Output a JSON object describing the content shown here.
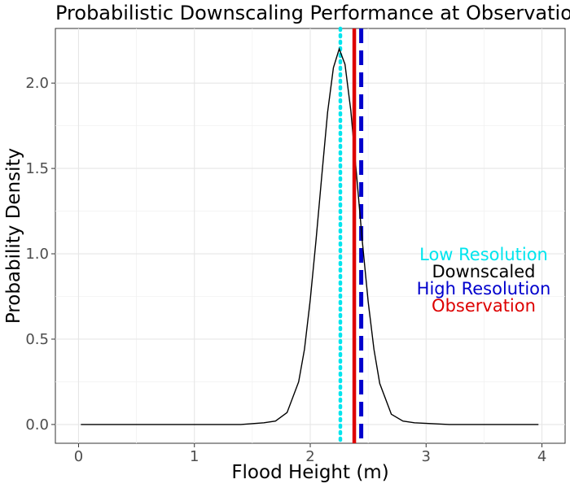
{
  "chart_data": {
    "type": "line",
    "title": "Probabilistic Downscaling Performance at Observation",
    "xlabel": "Flood Height (m)",
    "ylabel": "Probability Density",
    "xlim": [
      -0.2,
      4.2
    ],
    "ylim": [
      -0.11,
      2.32
    ],
    "x_ticks": [
      0,
      1,
      2,
      3,
      4
    ],
    "y_ticks": [
      0.0,
      0.5,
      1.0,
      1.5,
      2.0
    ],
    "x_tick_labels": [
      "0",
      "1",
      "2",
      "3",
      "4"
    ],
    "y_tick_labels": [
      "0.0",
      "0.5",
      "1.0",
      "1.5",
      "2.0"
    ],
    "grid": true,
    "legend_position": "right",
    "series": [
      {
        "name": "Downscaled",
        "style": "solid",
        "color": "#000000",
        "x": [
          0.02,
          1.4,
          1.6,
          1.7,
          1.8,
          1.9,
          1.95,
          2.0,
          2.05,
          2.1,
          2.15,
          2.2,
          2.25,
          2.3,
          2.35,
          2.4,
          2.45,
          2.5,
          2.55,
          2.6,
          2.7,
          2.8,
          2.9,
          3.2,
          3.97
        ],
        "y": [
          0.0,
          0.0,
          0.01,
          0.02,
          0.07,
          0.25,
          0.44,
          0.73,
          1.08,
          1.46,
          1.83,
          2.09,
          2.2,
          2.11,
          1.84,
          1.46,
          1.07,
          0.72,
          0.44,
          0.24,
          0.06,
          0.02,
          0.01,
          0.0,
          0.0
        ]
      }
    ],
    "reference_lines": [
      {
        "name": "Low Resolution",
        "x": 2.26,
        "color": "#00e5ee",
        "style": "dotted"
      },
      {
        "name": "High Resolution",
        "x": 2.44,
        "color": "#0000cd",
        "style": "dashed"
      },
      {
        "name": "Observation",
        "x": 2.38,
        "color": "#dd0000",
        "style": "solid"
      }
    ],
    "legend": [
      {
        "label": "Low Resolution",
        "color": "#00e5ee"
      },
      {
        "label": "Downscaled",
        "color": "#000000"
      },
      {
        "label": "High Resolution",
        "color": "#0000cd"
      },
      {
        "label": "Observation",
        "color": "#dd0000"
      }
    ]
  }
}
